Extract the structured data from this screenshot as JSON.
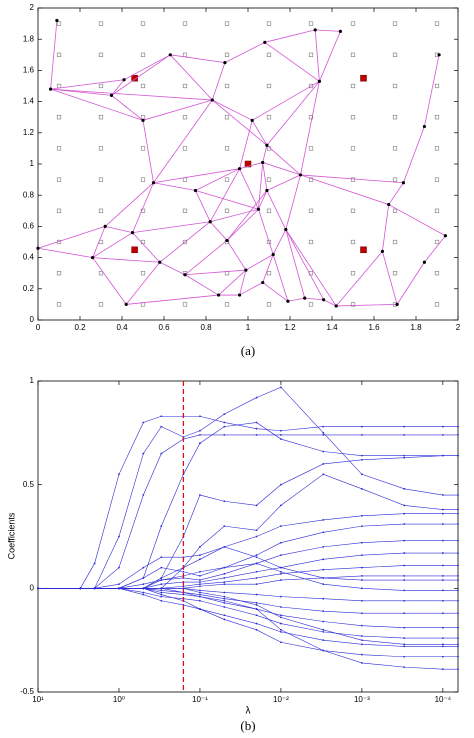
{
  "chart_data": [
    {
      "type": "network",
      "caption": "(a)",
      "xlim": [
        0,
        2
      ],
      "ylim": [
        0,
        2
      ],
      "xticks": [
        0,
        0.2,
        0.4,
        0.6,
        0.8,
        1,
        1.2,
        1.4,
        1.6,
        1.8,
        2
      ],
      "yticks": [
        0,
        0.2,
        0.4,
        0.6,
        0.8,
        1,
        1.2,
        1.4,
        1.6,
        1.8,
        2
      ],
      "grid_points": [
        0.1,
        0.3,
        0.5,
        0.7,
        0.9,
        1.1,
        1.3,
        1.5,
        1.7,
        1.9
      ],
      "grid_point_color": "#777777",
      "anchors": {
        "x": [
          0.46,
          1.55,
          1.0,
          0.46,
          1.55
        ],
        "y": [
          1.55,
          1.55,
          1.0,
          0.45,
          0.45
        ],
        "color": "#c00000"
      },
      "x": [
        0.09,
        0.06,
        0.35,
        0.41,
        0.5,
        0.63,
        0.83,
        0.89,
        1.08,
        1.32,
        1.44,
        1.34,
        1.02,
        1.09,
        0.55,
        0.75,
        0.96,
        1.07,
        1.25,
        0.82,
        1.05,
        1.09,
        1.18,
        0.45,
        0.32,
        0.26,
        0,
        0.58,
        0.7,
        0.9,
        0.99,
        1.12,
        0.42,
        0.86,
        0.96,
        1.07,
        1.19,
        1.27,
        1.36,
        1.42,
        1.71,
        1.84,
        1.94,
        1.67,
        1.74,
        1.84,
        1.91,
        1.64
      ],
      "y": [
        1.92,
        1.48,
        1.44,
        1.54,
        1.28,
        1.7,
        1.41,
        1.65,
        1.78,
        1.86,
        1.85,
        1.53,
        1.28,
        1.12,
        0.88,
        0.83,
        0.97,
        1.01,
        0.93,
        0.63,
        0.71,
        0.83,
        0.58,
        0.56,
        0.6,
        0.4,
        0.46,
        0.37,
        0.29,
        0.51,
        0.32,
        0.42,
        0.1,
        0.16,
        0.16,
        0.24,
        0.12,
        0.14,
        0.13,
        0.09,
        0.1,
        0.37,
        0.54,
        0.74,
        0.88,
        1.24,
        1.7,
        0.44
      ],
      "edges": [
        [
          0,
          1
        ],
        [
          1,
          2
        ],
        [
          1,
          3
        ],
        [
          1,
          4
        ],
        [
          2,
          3
        ],
        [
          2,
          4
        ],
        [
          3,
          5
        ],
        [
          2,
          5
        ],
        [
          1,
          6
        ],
        [
          4,
          6
        ],
        [
          5,
          6
        ],
        [
          5,
          7
        ],
        [
          6,
          7
        ],
        [
          7,
          8
        ],
        [
          8,
          9
        ],
        [
          9,
          10
        ],
        [
          8,
          11
        ],
        [
          9,
          11
        ],
        [
          10,
          11
        ],
        [
          6,
          12
        ],
        [
          11,
          12
        ],
        [
          11,
          13
        ],
        [
          12,
          13
        ],
        [
          6,
          13
        ],
        [
          4,
          14
        ],
        [
          6,
          14
        ],
        [
          12,
          16
        ],
        [
          13,
          17
        ],
        [
          13,
          18
        ],
        [
          11,
          18
        ],
        [
          14,
          15
        ],
        [
          15,
          16
        ],
        [
          16,
          17
        ],
        [
          17,
          18
        ],
        [
          14,
          16
        ],
        [
          15,
          19
        ],
        [
          16,
          19
        ],
        [
          16,
          20
        ],
        [
          17,
          20
        ],
        [
          17,
          21
        ],
        [
          18,
          21
        ],
        [
          18,
          22
        ],
        [
          21,
          22
        ],
        [
          19,
          20
        ],
        [
          20,
          21
        ],
        [
          14,
          23
        ],
        [
          14,
          24
        ],
        [
          23,
          24
        ],
        [
          24,
          25
        ],
        [
          25,
          26
        ],
        [
          24,
          26
        ],
        [
          23,
          27
        ],
        [
          23,
          25
        ],
        [
          25,
          32
        ],
        [
          25,
          27
        ],
        [
          27,
          28
        ],
        [
          23,
          19
        ],
        [
          27,
          19
        ],
        [
          28,
          29
        ],
        [
          19,
          29
        ],
        [
          29,
          20
        ],
        [
          29,
          30
        ],
        [
          30,
          31
        ],
        [
          31,
          22
        ],
        [
          20,
          31
        ],
        [
          28,
          33
        ],
        [
          28,
          30
        ],
        [
          30,
          33
        ],
        [
          30,
          34
        ],
        [
          33,
          34
        ],
        [
          34,
          35
        ],
        [
          35,
          31
        ],
        [
          35,
          36
        ],
        [
          31,
          36
        ],
        [
          36,
          37
        ],
        [
          37,
          38
        ],
        [
          38,
          39
        ],
        [
          39,
          40
        ],
        [
          37,
          22
        ],
        [
          38,
          22
        ],
        [
          32,
          27
        ],
        [
          32,
          33
        ],
        [
          39,
          47
        ],
        [
          47,
          40
        ],
        [
          40,
          41
        ],
        [
          41,
          42
        ],
        [
          42,
          43
        ],
        [
          43,
          44
        ],
        [
          44,
          45
        ],
        [
          45,
          46
        ],
        [
          43,
          47
        ],
        [
          18,
          43
        ],
        [
          44,
          18
        ],
        [
          22,
          39
        ],
        [
          21,
          29
        ],
        [
          15,
          20
        ]
      ],
      "edge_color": "#d455d4",
      "node_color": "#000000"
    },
    {
      "type": "line",
      "caption": "(b)",
      "xlabel": "λ",
      "ylabel": "Coefficients",
      "xscale": "log",
      "xlim": [
        10,
        6.5e-05
      ],
      "ylim": [
        -0.5,
        1
      ],
      "xticks": [
        {
          "value": 10,
          "label": "10¹"
        },
        {
          "value": 1,
          "label": "10⁰"
        },
        {
          "value": 0.1,
          "label": "10⁻¹"
        },
        {
          "value": 0.01,
          "label": "10⁻²"
        },
        {
          "value": 0.001,
          "label": "10⁻³"
        },
        {
          "value": 0.0001,
          "label": "10⁻⁴"
        }
      ],
      "yticks": [
        -0.5,
        0,
        0.5,
        1
      ],
      "color": "#2a2ad8",
      "vline": {
        "value": 0.16,
        "color": "#e01010"
      },
      "x": [
        10,
        3,
        2,
        1,
        0.5,
        0.3,
        0.16,
        0.1,
        0.05,
        0.02,
        0.01,
        0.003,
        0.001,
        0.0003,
        0.0001,
        6.5e-05
      ],
      "series": [
        {
          "values": [
            0,
            0,
            0.12,
            0.55,
            0.8,
            0.83,
            0.83,
            0.83,
            0.8,
            0.77,
            0.76,
            0.78,
            0.78,
            0.78,
            0.78,
            0.78
          ]
        },
        {
          "values": [
            0,
            0,
            0,
            0.25,
            0.65,
            0.78,
            0.73,
            0.76,
            0.84,
            0.92,
            0.97,
            0.75,
            0.55,
            0.48,
            0.45,
            0.45
          ]
        },
        {
          "values": [
            0,
            0,
            0,
            0.1,
            0.45,
            0.65,
            0.72,
            0.74,
            0.74,
            0.74,
            0.74,
            0.74,
            0.74,
            0.74,
            0.74,
            0.74
          ]
        },
        {
          "values": [
            0,
            0,
            0,
            0,
            0.05,
            0.3,
            0.55,
            0.7,
            0.78,
            0.8,
            0.72,
            0.66,
            0.64,
            0.64,
            0.64,
            0.64
          ]
        },
        {
          "values": [
            0,
            0,
            0,
            0,
            0,
            0.05,
            0.25,
            0.45,
            0.42,
            0.4,
            0.5,
            0.6,
            0.62,
            0.63,
            0.64,
            0.64
          ]
        },
        {
          "values": [
            0,
            0,
            0,
            0,
            0,
            0,
            0.1,
            0.2,
            0.3,
            0.28,
            0.4,
            0.55,
            0.48,
            0.4,
            0.38,
            0.38
          ]
        },
        {
          "values": [
            0,
            0,
            0,
            0.02,
            0.1,
            0.15,
            0.15,
            0.16,
            0.2,
            0.25,
            0.3,
            0.33,
            0.35,
            0.36,
            0.36,
            0.36
          ]
        },
        {
          "values": [
            0,
            0,
            0,
            0,
            0.05,
            0.1,
            0.08,
            0.06,
            0.1,
            0.16,
            0.22,
            0.27,
            0.3,
            0.31,
            0.31,
            0.31
          ]
        },
        {
          "values": [
            0,
            0,
            0,
            0,
            0,
            0.04,
            0.05,
            0.04,
            0.07,
            0.12,
            0.16,
            0.2,
            0.22,
            0.23,
            0.23,
            0.23
          ]
        },
        {
          "values": [
            0,
            0,
            0,
            0,
            0,
            0.02,
            0.03,
            0.03,
            0.05,
            0.08,
            0.1,
            0.14,
            0.16,
            0.17,
            0.17,
            0.17
          ]
        },
        {
          "values": [
            0,
            0,
            0,
            0,
            0,
            0,
            0.01,
            0.02,
            0.03,
            0.05,
            0.07,
            0.09,
            0.1,
            0.11,
            0.11,
            0.11
          ]
        },
        {
          "values": [
            0,
            0,
            0,
            0,
            0,
            0,
            0,
            0.01,
            0.02,
            0.02,
            0.04,
            0.05,
            0.06,
            0.06,
            0.06,
            0.06
          ]
        },
        {
          "values": [
            0,
            0,
            0,
            0,
            0,
            0,
            0,
            -0.01,
            -0.02,
            -0.03,
            -0.04,
            -0.05,
            -0.06,
            -0.06,
            -0.06,
            -0.06
          ]
        },
        {
          "values": [
            0,
            0,
            0,
            0,
            0,
            -0.01,
            -0.02,
            -0.03,
            -0.05,
            -0.07,
            -0.09,
            -0.11,
            -0.12,
            -0.12,
            -0.12,
            -0.12
          ]
        },
        {
          "values": [
            0,
            0,
            0,
            0,
            0,
            -0.02,
            -0.03,
            -0.04,
            -0.07,
            -0.1,
            -0.13,
            -0.16,
            -0.18,
            -0.19,
            -0.19,
            -0.19
          ]
        },
        {
          "values": [
            0,
            0,
            0,
            0,
            -0.02,
            -0.04,
            -0.05,
            -0.06,
            -0.09,
            -0.13,
            -0.17,
            -0.21,
            -0.23,
            -0.24,
            -0.24,
            -0.24
          ]
        },
        {
          "values": [
            0,
            0,
            0,
            0,
            -0.03,
            -0.06,
            -0.08,
            -0.1,
            -0.13,
            -0.17,
            -0.21,
            -0.25,
            -0.27,
            -0.28,
            -0.28,
            -0.28
          ]
        },
        {
          "values": [
            0,
            0,
            0,
            0,
            0,
            -0.03,
            -0.06,
            -0.1,
            -0.15,
            -0.2,
            -0.26,
            -0.3,
            -0.32,
            -0.33,
            -0.33,
            -0.33
          ]
        },
        {
          "values": [
            0,
            0,
            0,
            0,
            0,
            0,
            -0.02,
            -0.04,
            -0.06,
            -0.1,
            -0.2,
            -0.3,
            -0.36,
            -0.38,
            -0.39,
            -0.39
          ]
        },
        {
          "values": [
            0,
            0,
            0,
            0,
            0,
            0,
            0,
            -0.02,
            -0.04,
            -0.08,
            -0.14,
            -0.2,
            -0.25,
            -0.27,
            -0.27,
            -0.27
          ]
        },
        {
          "values": [
            0,
            0,
            0,
            0,
            0.02,
            0.04,
            0.06,
            0.08,
            0.1,
            0.12,
            0.08,
            0.02,
            0,
            -0.01,
            -0.01,
            -0.01
          ]
        },
        {
          "values": [
            0,
            0,
            0,
            0,
            0,
            0.05,
            0.1,
            0.14,
            0.2,
            0.15,
            0.1,
            0.05,
            0.04,
            0.04,
            0.04,
            0.04
          ]
        }
      ]
    }
  ]
}
